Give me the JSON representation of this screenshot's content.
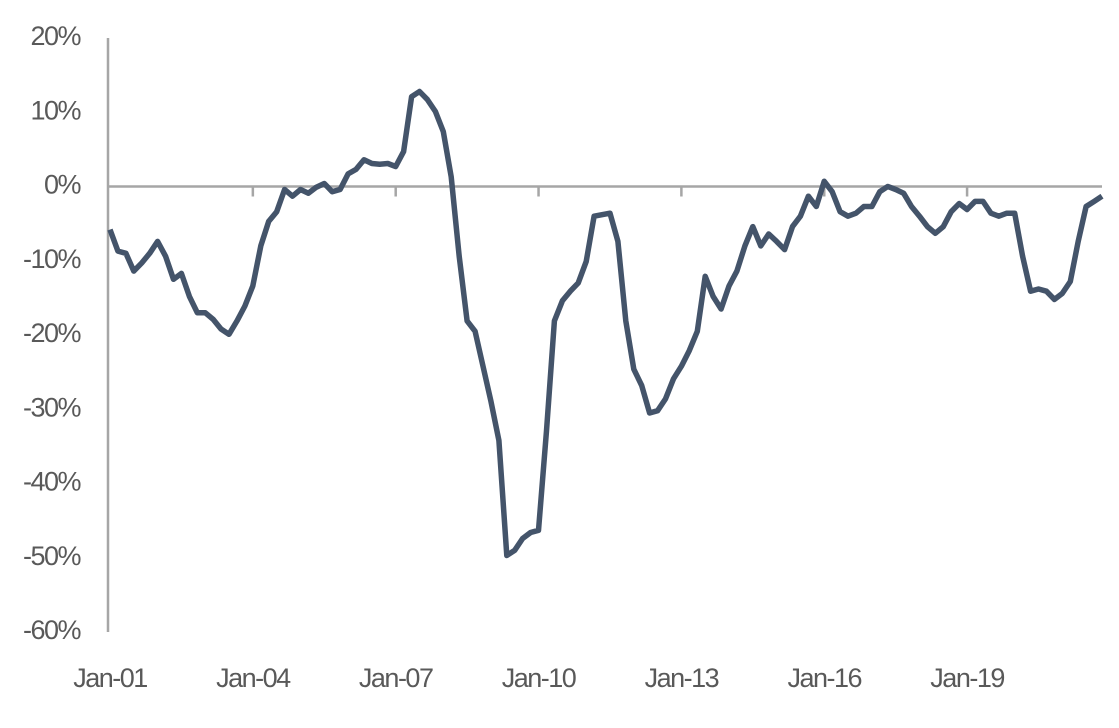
{
  "chart_data": {
    "type": "line",
    "categories": [
      "Jan-01",
      null,
      null,
      null,
      null,
      null,
      null,
      null,
      null,
      null,
      null,
      null,
      null,
      null,
      null,
      null,
      null,
      null,
      "Jan-04",
      null,
      null,
      null,
      null,
      null,
      null,
      null,
      null,
      null,
      null,
      null,
      null,
      null,
      null,
      null,
      null,
      null,
      "Jan-07",
      null,
      null,
      null,
      null,
      null,
      null,
      null,
      null,
      null,
      null,
      null,
      null,
      null,
      null,
      null,
      null,
      null,
      "Jan-10",
      null,
      null,
      null,
      null,
      null,
      null,
      null,
      null,
      null,
      null,
      null,
      null,
      null,
      null,
      null,
      null,
      null,
      "Jan-13",
      null,
      null,
      null,
      null,
      null,
      null,
      null,
      null,
      null,
      null,
      null,
      null,
      null,
      null,
      null,
      null,
      null,
      "Jan-16",
      null,
      null,
      null,
      null,
      null,
      null,
      null,
      null,
      null,
      null,
      null,
      null,
      null,
      null,
      null,
      null,
      null,
      "Jan-19",
      null,
      null,
      null,
      null,
      null,
      null,
      null,
      null,
      null,
      null,
      null,
      null,
      null,
      null,
      null,
      null,
      null
    ],
    "series": [
      {
        "color": "#44546a",
        "values": [
          -5.8,
          -8.7,
          -9,
          -11.4,
          -10.3,
          -9,
          -7.4,
          -9.4,
          -12.5,
          -11.7,
          -14.8,
          -17,
          -17,
          -17.9,
          -19.2,
          -19.9,
          -18.1,
          -16.1,
          -13.4,
          -8,
          -4.7,
          -3.4,
          -0.4,
          -1.3,
          -0.4,
          -0.9,
          -0.1,
          0.4,
          -0.7,
          -0.4,
          1.7,
          2.3,
          3.6,
          3.1,
          3,
          3.1,
          2.7,
          4.7,
          12.1,
          12.8,
          11.7,
          10.1,
          7.4,
          1.3,
          -9.4,
          -18.1,
          -19.5,
          -24.2,
          -28.9,
          -34.2,
          -49.7,
          -49,
          -47.4,
          -46.6,
          -46.3,
          -32.9,
          -18.1,
          -15.4,
          -14.1,
          -13,
          -10.1,
          -4,
          -3.8,
          -3.6,
          -7.4,
          -18.1,
          -24.6,
          -26.8,
          -30.5,
          -30.2,
          -28.6,
          -25.9,
          -24.2,
          -22.1,
          -19.5,
          -12.1,
          -14.8,
          -16.5,
          -13.4,
          -11.4,
          -8,
          -5.4,
          -8,
          -6.4,
          -7.4,
          -8.5,
          -5.4,
          -4,
          -1.3,
          -2.7,
          0.7,
          -0.7,
          -3.4,
          -4,
          -3.6,
          -2.7,
          -2.7,
          -0.7,
          0,
          -0.4,
          -0.9,
          -2.7,
          -4,
          -5.4,
          -6.3,
          -5.4,
          -3.4,
          -2.3,
          -3.1,
          -2,
          -2,
          -3.6,
          -4,
          -3.6,
          -3.6,
          -9.4,
          -14.1,
          -13.8,
          -14.1,
          -15.2,
          -14.4,
          -12.8,
          -7.4,
          -2.7,
          -2,
          -1.3
        ]
      }
    ],
    "ylim": [
      -60,
      20
    ],
    "yticks": [
      {
        "value": 20,
        "label": "20%"
      },
      {
        "value": 10,
        "label": "10%"
      },
      {
        "value": 0,
        "label": "0%"
      },
      {
        "value": -10,
        "label": "-10%"
      },
      {
        "value": -20,
        "label": "-20%"
      },
      {
        "value": -30,
        "label": "-30%"
      },
      {
        "value": -40,
        "label": "-40%"
      },
      {
        "value": -50,
        "label": "-50%"
      },
      {
        "value": -60,
        "label": "-60%"
      }
    ]
  }
}
